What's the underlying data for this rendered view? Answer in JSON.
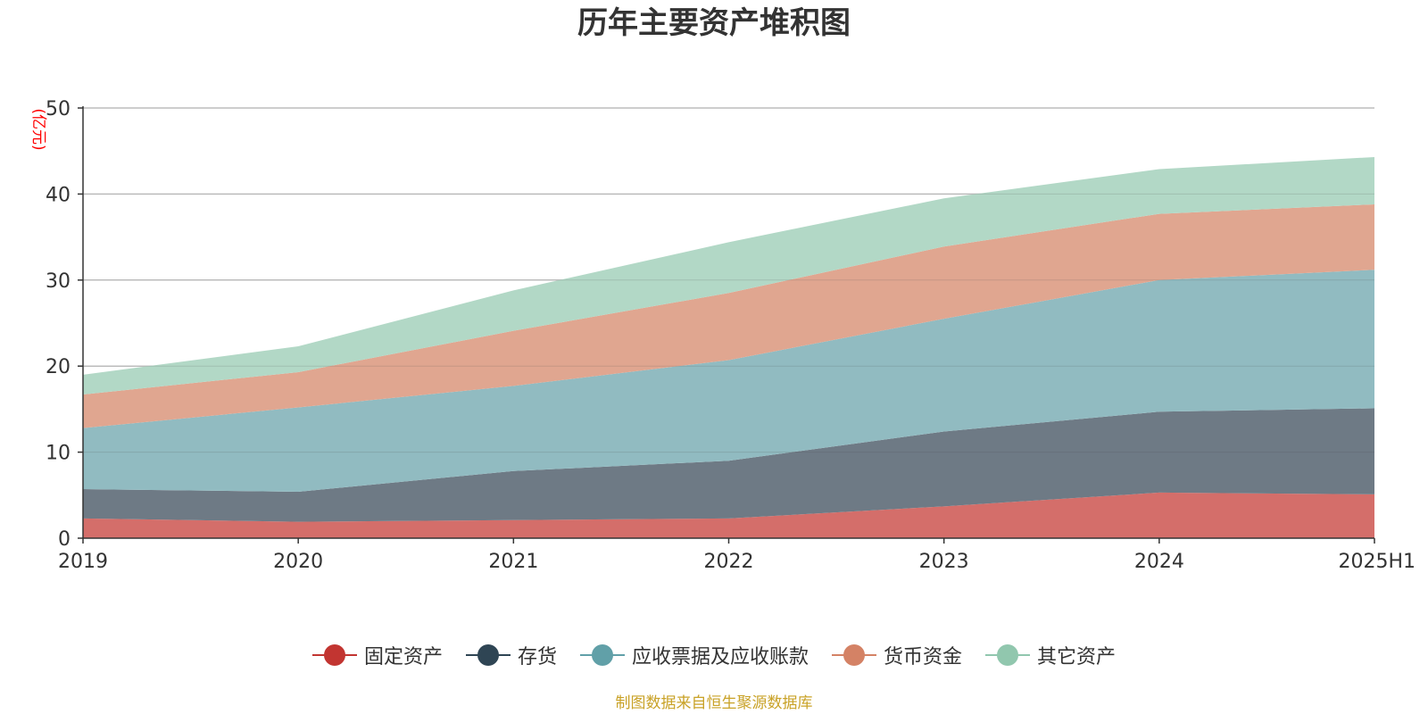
{
  "chart_data": {
    "type": "area",
    "stacked": true,
    "title": "历年主要资产堆积图",
    "ylabel": "(亿元)",
    "xlabel": "",
    "categories": [
      "2019",
      "2020",
      "2021",
      "2022",
      "2023",
      "2024",
      "2025H1"
    ],
    "ylim": [
      0,
      50
    ],
    "yticks": [
      "0",
      "10",
      "20",
      "30",
      "40",
      "50"
    ],
    "grid": true,
    "legend_position": "bottom",
    "series": [
      {
        "name": "固定资产",
        "color": "#c23531",
        "fill": "#d46e6a",
        "values": [
          2.3,
          1.9,
          2.1,
          2.3,
          3.7,
          5.3,
          5.1
        ]
      },
      {
        "name": "存货",
        "color": "#2f4554",
        "fill": "#6e7a85",
        "values": [
          3.4,
          3.5,
          5.7,
          6.7,
          8.7,
          9.4,
          10.0
        ]
      },
      {
        "name": "应收票据及应收账款",
        "color": "#61a0a8",
        "fill": "#91bbc1",
        "values": [
          7.1,
          9.8,
          9.9,
          11.7,
          13.1,
          15.3,
          16.1
        ]
      },
      {
        "name": "货币资金",
        "color": "#d48265",
        "fill": "#e0a690",
        "values": [
          3.9,
          4.1,
          6.4,
          7.8,
          8.4,
          7.7,
          7.6
        ]
      },
      {
        "name": "其它资产",
        "color": "#91c7ae",
        "fill": "#b2d8c6",
        "values": [
          2.3,
          3.0,
          4.7,
          5.9,
          5.6,
          5.2,
          5.5
        ]
      }
    ]
  },
  "source_note": "制图数据来自恒生聚源数据库",
  "colors": {
    "title": "#333333",
    "axis": "#333333",
    "grid": "#cccccc",
    "ylabel": "#ff0000",
    "source": "#c9a227"
  }
}
